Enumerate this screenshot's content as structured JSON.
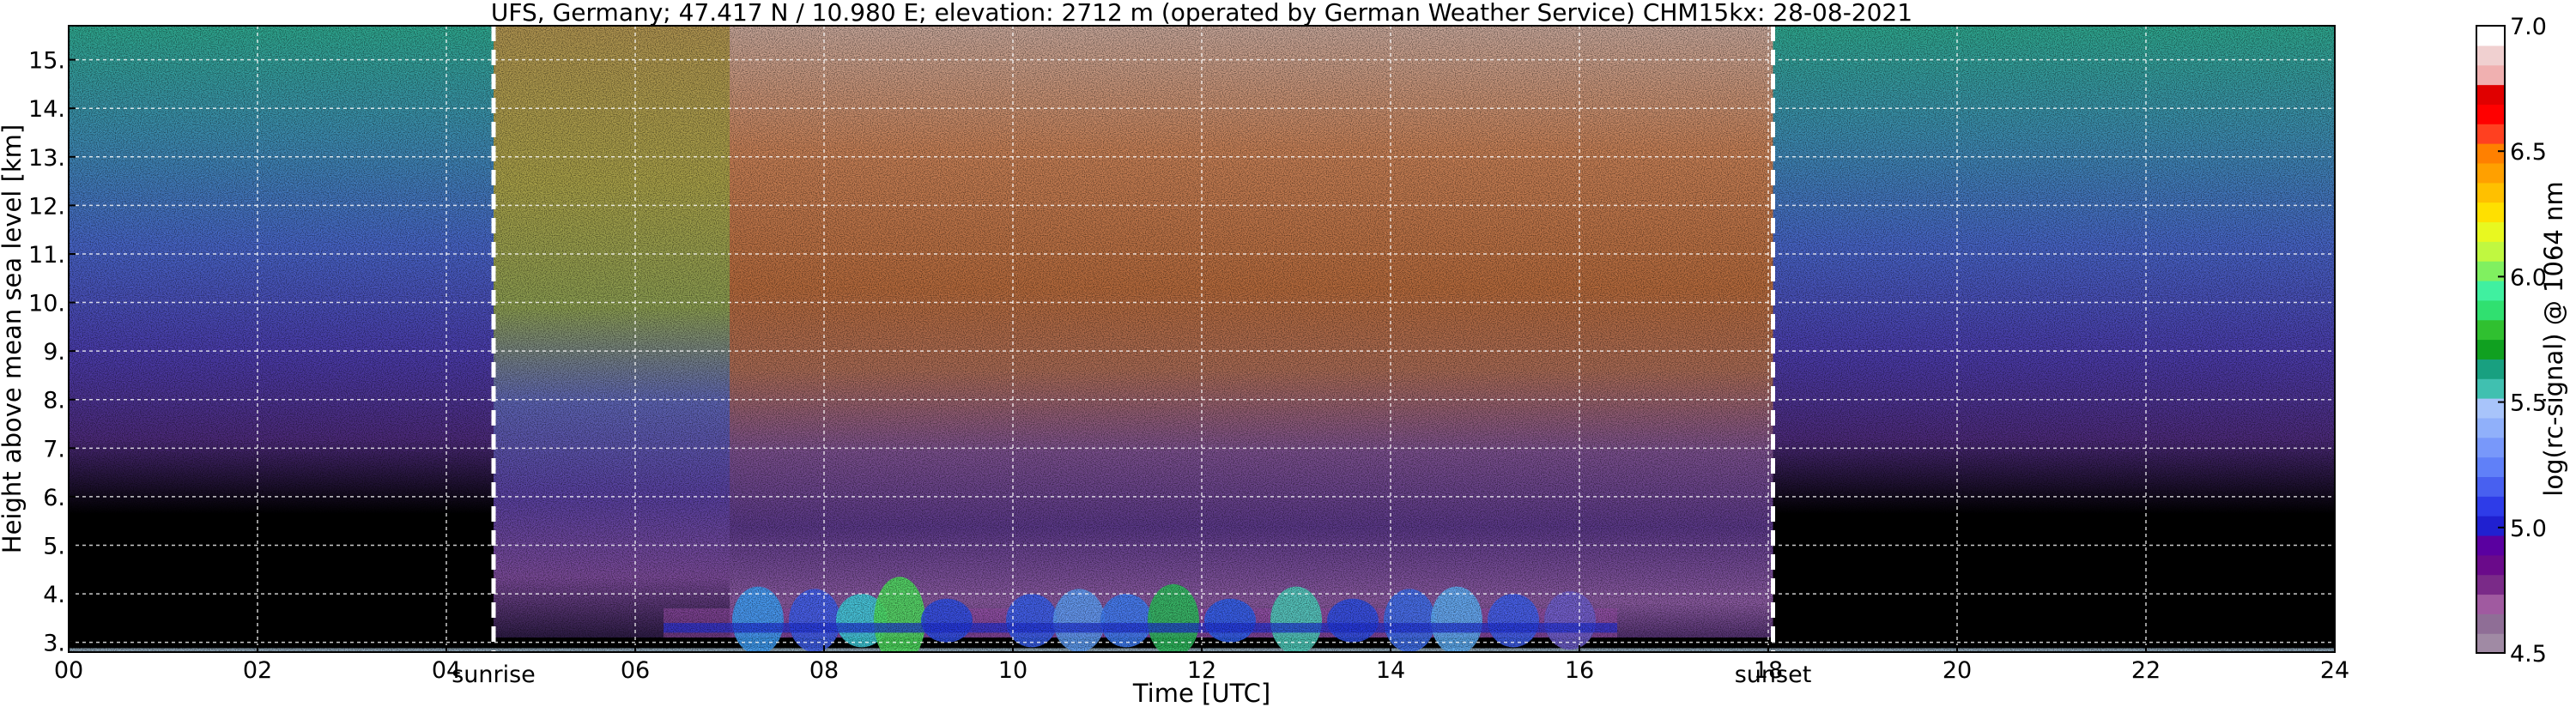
{
  "chart_data": {
    "type": "heatmap",
    "title": "UFS, Germany; 47.417 N / 10.980 E; elevation: 2712 m  (operated by German Weather Service)    CHM15kx: 28-08-2021",
    "xlabel": "Time [UTC]",
    "ylabel": "Height above mean sea level [km]",
    "colorbar_label": "log(rc-signal) @ 1064 nm",
    "xlim": [
      0,
      24
    ],
    "ylim": [
      2.8,
      15.7
    ],
    "x_ticks": [
      0,
      2,
      4,
      6,
      8,
      10,
      12,
      14,
      16,
      18,
      20,
      22,
      24
    ],
    "x_tick_labels": [
      "00",
      "02",
      "04",
      "06",
      "08",
      "10",
      "12",
      "14",
      "16",
      "18",
      "20",
      "22",
      "24"
    ],
    "y_ticks": [
      3,
      4,
      5,
      6,
      7,
      8,
      9,
      10,
      11,
      12,
      13,
      14,
      15
    ],
    "y_tick_labels": [
      "3.",
      "4.",
      "5.",
      "6.",
      "7.",
      "8.",
      "9.",
      "10.",
      "11.",
      "12.",
      "13.",
      "14.",
      "15."
    ],
    "grid": true,
    "colorbar_range": [
      4.5,
      7.0
    ],
    "colorbar_ticks": [
      4.5,
      5.0,
      5.5,
      6.0,
      6.5,
      7.0
    ],
    "colorbar_tick_labels": [
      "4.5",
      "5.0",
      "5.5",
      "6.0",
      "6.5",
      "7.0"
    ],
    "colormap": [
      "#a08aa4",
      "#8f6e96",
      "#a05aa0",
      "#7a2a88",
      "#6a0a8a",
      "#5a00a0",
      "#2020d0",
      "#2e3ce8",
      "#4860f0",
      "#6080f8",
      "#7898fa",
      "#90b0fa",
      "#a8c4fa",
      "#40c0b0",
      "#18a080",
      "#10a020",
      "#30c030",
      "#30e070",
      "#40f0a0",
      "#80f060",
      "#c0f840",
      "#e8f820",
      "#ffe000",
      "#ffc000",
      "#ffa000",
      "#ff8000",
      "#ff4020",
      "#ff0000",
      "#e00000",
      "#f0b0b0",
      "#f0d0d0",
      "#ffffff"
    ],
    "annotations": [
      {
        "text": "sunrise",
        "x": 4.5
      },
      {
        "text": "sunset",
        "x": 18.05
      }
    ],
    "event_lines": [
      {
        "name": "sunrise",
        "x": 4.5
      },
      {
        "name": "sunset",
        "x": 18.05
      }
    ],
    "cloud_layer": {
      "base_km": 3.0,
      "top_km": 4.1,
      "from_utc": 6.3,
      "to_utc": 16.4
    }
  }
}
